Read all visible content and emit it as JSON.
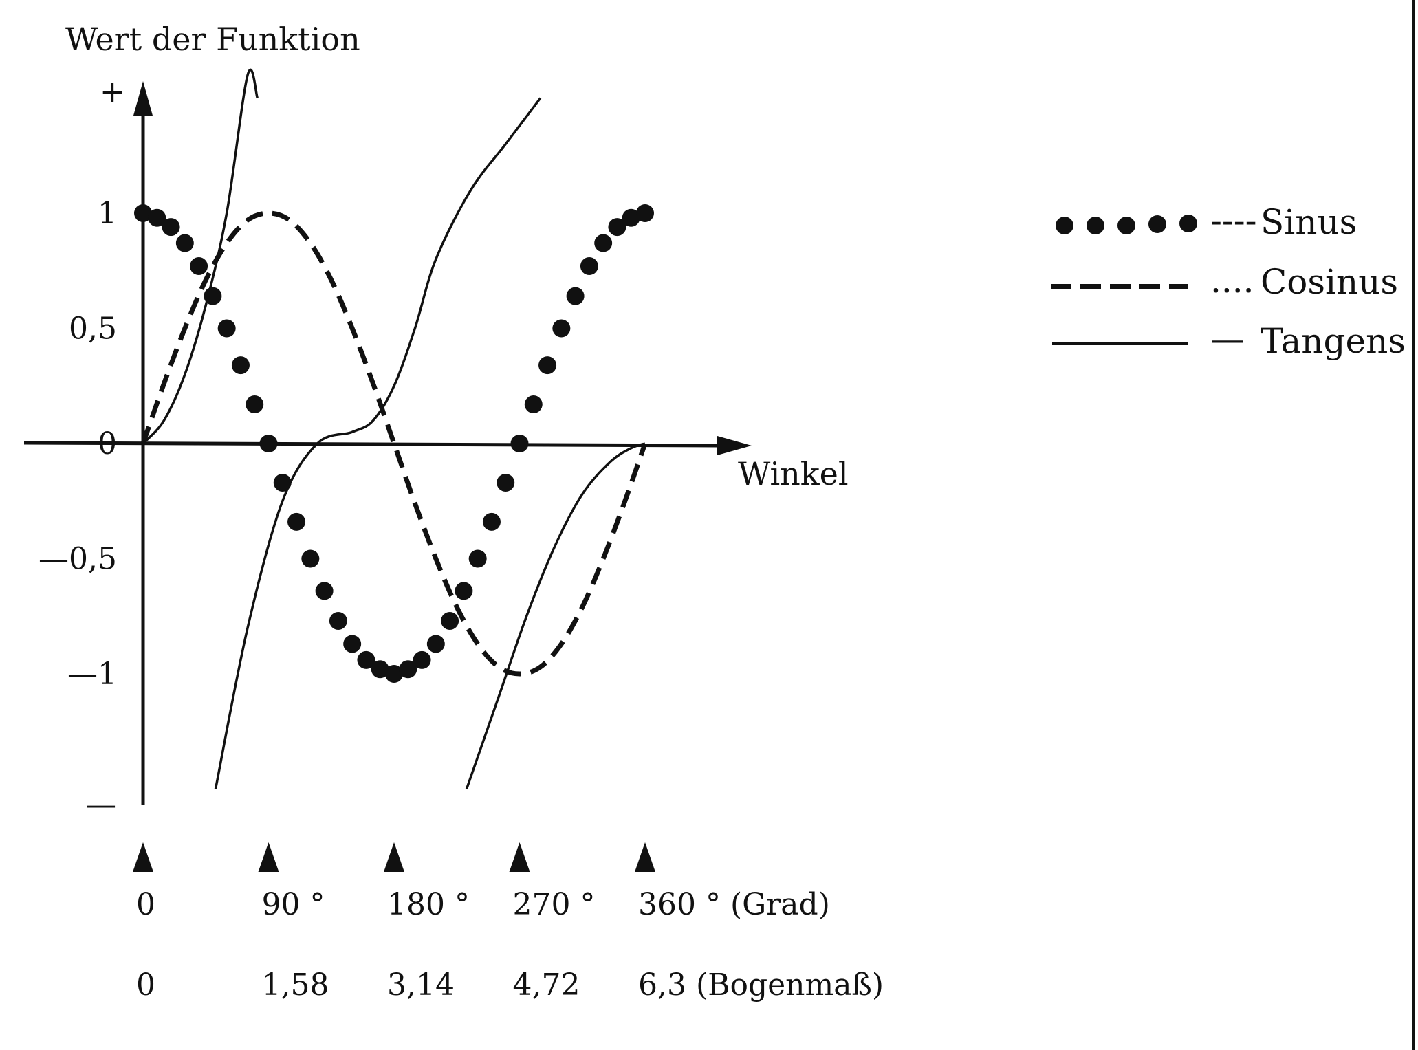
{
  "chart_data": {
    "type": "line",
    "ylabel": "Wert der Funktion",
    "xlabel": "Winkel",
    "y_top_marker": "+",
    "y_bottom_marker": "—",
    "ylim": [
      -1.5,
      1.5
    ],
    "xlim": [
      0,
      360
    ],
    "y_ticks": [
      {
        "value": 1,
        "label": "1"
      },
      {
        "value": 0.5,
        "label": "0,5"
      },
      {
        "value": 0,
        "label": "0"
      },
      {
        "value": -0.5,
        "label": "—0,5"
      },
      {
        "value": -1,
        "label": "—1"
      }
    ],
    "x_ticks_deg": [
      {
        "value": 0,
        "label": "0"
      },
      {
        "value": 90,
        "label": "90 °"
      },
      {
        "value": 180,
        "label": "180 °"
      },
      {
        "value": 270,
        "label": "270 °"
      },
      {
        "value": 360,
        "label": "360 ° (Grad)"
      }
    ],
    "x_ticks_rad": [
      {
        "value": 0,
        "label": "0"
      },
      {
        "value": 90,
        "label": "1,58"
      },
      {
        "value": 180,
        "label": "3,14"
      },
      {
        "value": 270,
        "label": "4,72"
      },
      {
        "value": 360,
        "label": "6,3 (Bogenmaß)"
      }
    ],
    "legend_position": "right",
    "series": [
      {
        "name": "Sinus",
        "legend_marker": "----",
        "style": "dots",
        "x": [
          0,
          10,
          20,
          30,
          40,
          50,
          60,
          70,
          80,
          90,
          100,
          110,
          120,
          130,
          140,
          150,
          160,
          170,
          180,
          190,
          200,
          210,
          220,
          230,
          240,
          250,
          260,
          270,
          280,
          290,
          300,
          310,
          320,
          330,
          340,
          350,
          360
        ],
        "y": [
          1.0,
          0.98,
          0.94,
          0.87,
          0.77,
          0.64,
          0.5,
          0.34,
          0.17,
          0.0,
          -0.17,
          -0.34,
          -0.5,
          -0.64,
          -0.77,
          -0.87,
          -0.94,
          -0.98,
          -1.0,
          -0.98,
          -0.94,
          -0.87,
          -0.77,
          -0.64,
          -0.5,
          -0.34,
          -0.17,
          0.0,
          0.17,
          0.34,
          0.5,
          0.64,
          0.77,
          0.87,
          0.94,
          0.98,
          1.0
        ]
      },
      {
        "name": "Cosinus",
        "legend_marker": "....",
        "style": "dashed",
        "x": [
          0,
          15,
          30,
          45,
          60,
          75,
          90,
          105,
          120,
          135,
          150,
          165,
          180,
          195,
          210,
          225,
          240,
          255,
          270,
          285,
          300,
          315,
          330,
          345,
          360
        ],
        "y": [
          0.0,
          0.26,
          0.5,
          0.71,
          0.87,
          0.97,
          1.0,
          0.97,
          0.87,
          0.71,
          0.5,
          0.26,
          0.0,
          -0.26,
          -0.5,
          -0.71,
          -0.87,
          -0.97,
          -1.0,
          -0.97,
          -0.87,
          -0.71,
          -0.5,
          -0.26,
          0.0
        ]
      },
      {
        "name": "Tangens",
        "legend_marker": "—",
        "style": "solid",
        "segments": [
          {
            "x": [
              0,
              15,
              30,
              45,
              60,
              75,
              82
            ],
            "y": [
              0.0,
              0.1,
              0.3,
              0.6,
              1.0,
              1.6,
              1.5
            ]
          },
          {
            "x": [
              52,
              75,
              100,
              125,
              150,
              165,
              180,
              195,
              210,
              235,
              260,
              285
            ],
            "y": [
              -1.5,
              -0.8,
              -0.25,
              0.0,
              0.05,
              0.1,
              0.25,
              0.5,
              0.8,
              1.1,
              1.3,
              1.5
            ]
          },
          {
            "x": [
              232,
              255,
              275,
              295,
              315,
              335,
              350,
              360
            ],
            "y": [
              -1.5,
              -1.1,
              -0.75,
              -0.45,
              -0.22,
              -0.08,
              -0.02,
              0.0
            ]
          }
        ]
      }
    ]
  }
}
